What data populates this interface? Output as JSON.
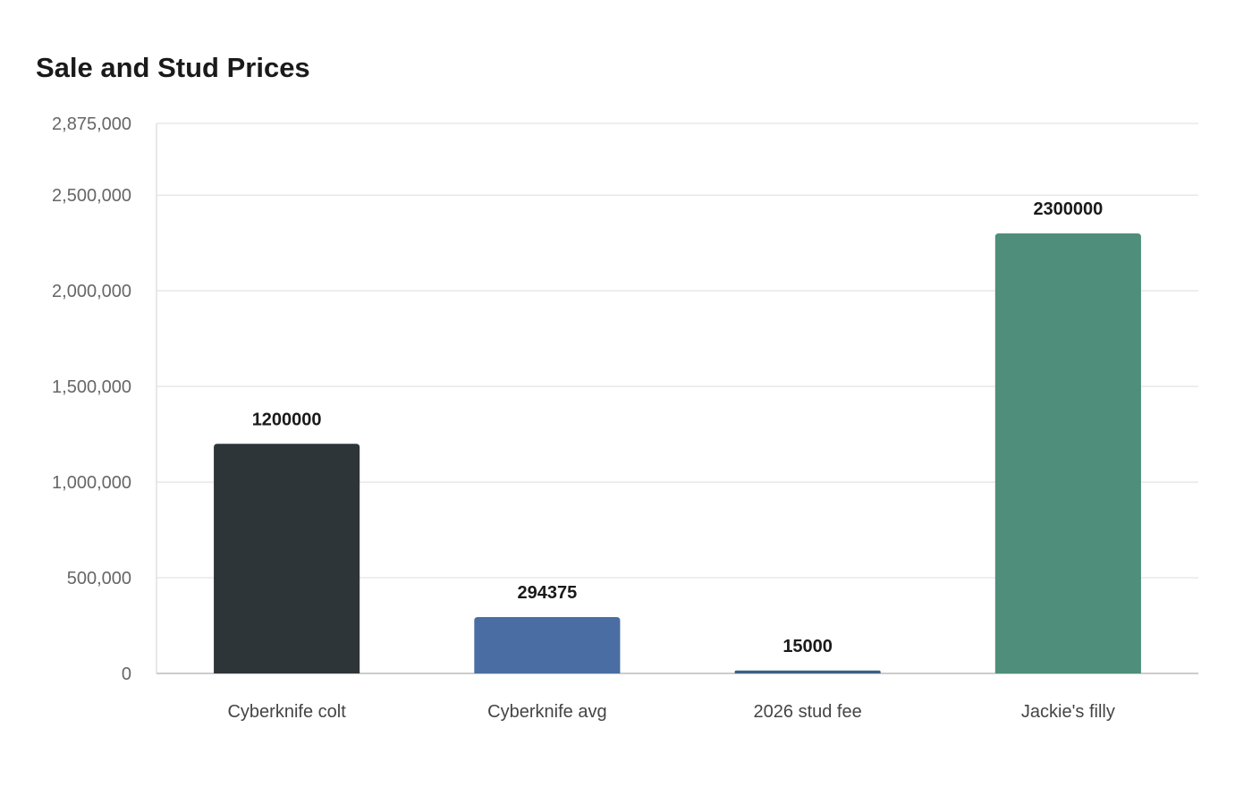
{
  "chart_data": {
    "type": "bar",
    "title": "Sale and Stud Prices",
    "xlabel": "",
    "ylabel": "",
    "categories": [
      "Cyberknife colt",
      "Cyberknife avg",
      "2026 stud fee",
      "Jackie's filly"
    ],
    "values": [
      1200000,
      294375,
      15000,
      2300000
    ],
    "value_labels": [
      "1200000",
      "294375",
      "15000",
      "2300000"
    ],
    "colors": [
      "#2e3538",
      "#4a6da3",
      "#3a5f86",
      "#4e8e7b"
    ],
    "ylim": [
      0,
      2875000
    ],
    "yticks": [
      0,
      500000,
      1000000,
      1500000,
      2000000,
      2500000,
      2875000
    ],
    "ytick_labels": [
      "0",
      "500,000",
      "1,000,000",
      "1,500,000",
      "2,000,000",
      "2,500,000",
      "2,875,000"
    ],
    "grid": true,
    "legend": "none"
  }
}
